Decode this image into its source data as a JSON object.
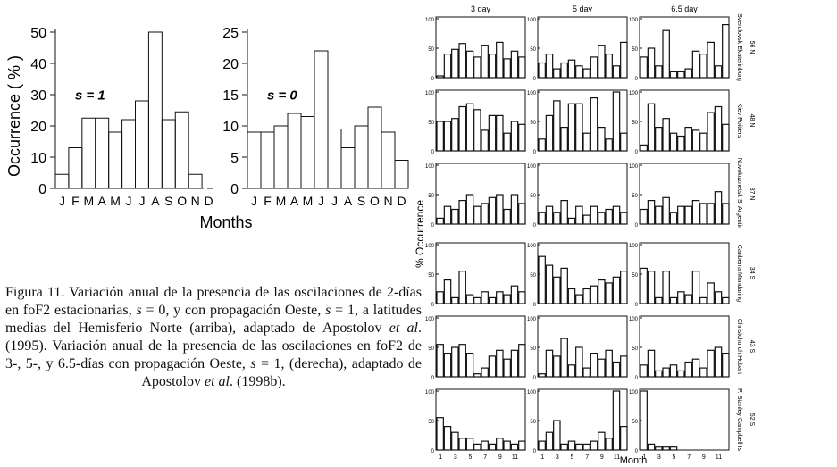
{
  "left_figure": {
    "ylabel": "Occurrence ( % )",
    "xlabel": "Months",
    "month_labels": [
      "J",
      "F",
      "M",
      "A",
      "M",
      "J",
      "J",
      "A",
      "S",
      "O",
      "N",
      "D"
    ],
    "panels": [
      {
        "label": "s = 1",
        "yticks": [
          0,
          10,
          20,
          30,
          40,
          50
        ]
      },
      {
        "label": "s = 0",
        "yticks": [
          0,
          5,
          10,
          15,
          20,
          25
        ]
      }
    ]
  },
  "chart_data": [
    {
      "type": "bar",
      "title": "s = 1",
      "categories": [
        "J",
        "F",
        "M",
        "A",
        "M",
        "J",
        "J",
        "A",
        "S",
        "O",
        "N",
        "D"
      ],
      "values": [
        4.5,
        13,
        22.5,
        22.5,
        18,
        22,
        28,
        50,
        22,
        24.5,
        4.5,
        0
      ],
      "xlabel": "",
      "ylabel": "Occurrence ( % )",
      "ylim": [
        0,
        50
      ],
      "grid": false
    },
    {
      "type": "bar",
      "title": "s = 0",
      "categories": [
        "J",
        "F",
        "M",
        "A",
        "M",
        "J",
        "J",
        "A",
        "S",
        "O",
        "N",
        "D"
      ],
      "values": [
        9,
        9,
        10,
        12,
        11.5,
        22,
        9.5,
        6.5,
        10,
        13,
        9,
        4.5
      ],
      "xlabel": "Months",
      "ylabel": "",
      "ylim": [
        0,
        25
      ],
      "grid": false
    }
  ],
  "right_figure": {
    "columns": [
      "3 day",
      "5 day",
      "6.5 day"
    ],
    "ylabel": "% Occurrence",
    "xlabel": "Month",
    "xticks": [
      "1",
      "3",
      "5",
      "7",
      "9",
      "11"
    ],
    "rows": [
      {
        "station": "Sverdlovsk Ekaterinburg",
        "lat": "56 N"
      },
      {
        "station": "Kiev Poitiers",
        "lat": "48 N"
      },
      {
        "station": "Novokuznetsk S. Argentin",
        "lat": "37 N"
      },
      {
        "station": "Canberra Mundaring",
        "lat": "34 S"
      },
      {
        "station": "Christchurch Hobart",
        "lat": "43 S"
      },
      {
        "station": "P. Stanley Campbell Is",
        "lat": "52 S"
      }
    ],
    "panel_values": [
      [
        [
          3,
          40,
          48,
          58,
          45,
          35,
          55,
          40,
          60,
          32,
          45,
          35
        ],
        [
          25,
          40,
          15,
          25,
          30,
          20,
          15,
          35,
          55,
          40,
          20,
          60
        ],
        [
          35,
          50,
          20,
          80,
          10,
          10,
          15,
          45,
          40,
          60,
          20,
          90
        ]
      ],
      [
        [
          50,
          50,
          55,
          75,
          80,
          70,
          35,
          60,
          60,
          30,
          50,
          45
        ],
        [
          20,
          60,
          85,
          40,
          80,
          80,
          30,
          90,
          40,
          20,
          100,
          30
        ],
        [
          10,
          80,
          40,
          55,
          30,
          25,
          40,
          35,
          30,
          65,
          75,
          45
        ]
      ],
      [
        [
          10,
          30,
          25,
          40,
          50,
          30,
          35,
          45,
          50,
          25,
          50,
          35
        ],
        [
          20,
          30,
          20,
          40,
          10,
          30,
          15,
          30,
          20,
          25,
          30,
          20
        ],
        [
          25,
          40,
          30,
          45,
          20,
          30,
          30,
          40,
          35,
          35,
          55,
          35
        ]
      ],
      [
        [
          20,
          40,
          10,
          55,
          15,
          10,
          20,
          10,
          20,
          15,
          30,
          20
        ],
        [
          80,
          65,
          45,
          60,
          25,
          15,
          25,
          30,
          40,
          35,
          45,
          55
        ],
        [
          60,
          55,
          10,
          55,
          10,
          20,
          15,
          55,
          10,
          35,
          20,
          10
        ]
      ],
      [
        [
          55,
          40,
          50,
          55,
          40,
          5,
          15,
          35,
          45,
          30,
          45,
          55
        ],
        [
          5,
          45,
          35,
          65,
          20,
          50,
          15,
          40,
          30,
          45,
          25,
          35
        ],
        [
          20,
          45,
          10,
          15,
          20,
          10,
          25,
          30,
          15,
          45,
          50,
          40
        ]
      ],
      [
        [
          55,
          40,
          30,
          20,
          20,
          10,
          15,
          10,
          20,
          15,
          10,
          15
        ],
        [
          15,
          30,
          50,
          10,
          15,
          10,
          10,
          15,
          30,
          20,
          100,
          40
        ],
        [
          100,
          10,
          5,
          5,
          5,
          0,
          0,
          0,
          0,
          0,
          0,
          0
        ]
      ]
    ]
  },
  "caption": {
    "label": "Figura 11.",
    "part1": " Variación anual de la presencia de las oscilaciones de 2-días en foF2 estacionarias, ",
    "s_var1": "s",
    "part2": " = 0, y con propagación Oeste, ",
    "s_var2": "s",
    "part3": " = 1, a latitudes medias del Hemisferio Norte (arriba), adaptado de Apostolov ",
    "etal1": "et al",
    "part4": ". (1995). Variación anual de la presencia de las oscilaciones en foF2 de 3-, 5-, y 6.5-días con propagación Oeste, ",
    "s_var3": "s",
    "part5": " = 1, (derecha), adaptado de Apostolov ",
    "etal2": "et al",
    "part6": ". (1998b)."
  }
}
